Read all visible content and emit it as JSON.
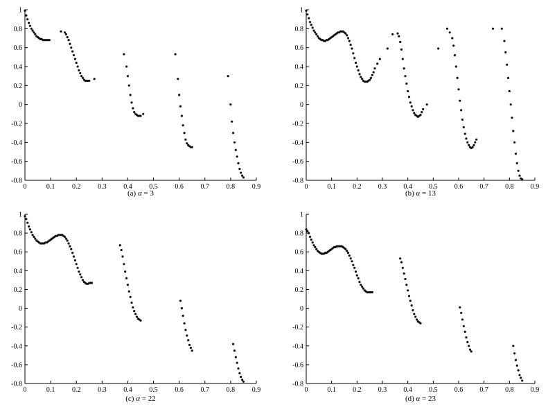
{
  "chart_data": [
    {
      "type": "scatter",
      "caption_prefix": "(a) ",
      "caption_var": "α",
      "caption_rest": " = 3",
      "xlim": [
        0,
        0.9
      ],
      "ylim": [
        -0.8,
        1
      ],
      "x_ticks": [
        "0",
        "0.1",
        "0.2",
        "0.3",
        "0.4",
        "0.5",
        "0.6",
        "0.7",
        "0.8",
        "0.9"
      ],
      "y_ticks": [
        "1",
        "0.8",
        "0.6",
        "0.4",
        "0.2",
        "0",
        "-0.2",
        "-0.4",
        "-0.6",
        "-0.8"
      ],
      "series": [
        {
          "x": [
            0,
            0.005,
            0.01,
            0.015,
            0.02,
            0.025,
            0.03,
            0.035,
            0.04,
            0.045,
            0.05,
            0.055,
            0.06,
            0.065,
            0.07,
            0.075,
            0.08,
            0.085,
            0.09,
            0.095,
            0.14,
            0.155,
            0.16,
            0.165,
            0.17,
            0.175,
            0.18,
            0.185,
            0.19,
            0.195,
            0.2,
            0.205,
            0.21,
            0.215,
            0.22,
            0.225,
            0.23,
            0.235,
            0.24,
            0.245,
            0.25,
            0.27,
            0.385,
            0.395,
            0.4,
            0.405,
            0.41,
            0.415,
            0.42,
            0.425,
            0.43,
            0.435,
            0.44,
            0.445,
            0.45,
            0.46,
            0.585,
            0.595,
            0.6,
            0.605,
            0.61,
            0.615,
            0.62,
            0.625,
            0.63,
            0.635,
            0.64,
            0.645,
            0.65,
            0.79,
            0.8,
            0.805,
            0.81,
            0.815,
            0.82,
            0.825,
            0.83,
            0.835,
            0.84,
            0.845,
            0.85
          ],
          "y": [
            0.99,
            0.94,
            0.9,
            0.86,
            0.83,
            0.8,
            0.78,
            0.76,
            0.74,
            0.72,
            0.71,
            0.7,
            0.69,
            0.69,
            0.68,
            0.68,
            0.68,
            0.68,
            0.68,
            0.68,
            0.77,
            0.76,
            0.74,
            0.71,
            0.68,
            0.64,
            0.6,
            0.56,
            0.52,
            0.48,
            0.44,
            0.4,
            0.36,
            0.33,
            0.3,
            0.28,
            0.26,
            0.25,
            0.25,
            0.25,
            0.25,
            0.27,
            0.53,
            0.4,
            0.3,
            0.2,
            0.1,
            0.02,
            -0.04,
            -0.08,
            -0.1,
            -0.11,
            -0.12,
            -0.12,
            -0.12,
            -0.1,
            0.53,
            0.27,
            0.1,
            -0.02,
            -0.12,
            -0.22,
            -0.3,
            -0.37,
            -0.41,
            -0.43,
            -0.44,
            -0.45,
            -0.45,
            0.3,
            0.0,
            -0.18,
            -0.3,
            -0.4,
            -0.48,
            -0.55,
            -0.62,
            -0.68,
            -0.72,
            -0.75,
            -0.77
          ]
        }
      ]
    },
    {
      "type": "scatter",
      "caption_prefix": "(b) ",
      "caption_var": "α",
      "caption_rest": " = 13",
      "xlim": [
        0,
        0.9
      ],
      "ylim": [
        -0.8,
        1
      ],
      "x_ticks": [
        "0",
        "0.1",
        "0.2",
        "0.3",
        "0.4",
        "0.5",
        "0.6",
        "0.7",
        "0.8",
        "0.9"
      ],
      "y_ticks": [
        "1",
        "0.8",
        "0.6",
        "0.4",
        "0.2",
        "0",
        "-0.2",
        "-0.4",
        "-0.6",
        "-0.8"
      ],
      "series": [
        {
          "x": [
            0,
            0.005,
            0.01,
            0.015,
            0.02,
            0.025,
            0.03,
            0.035,
            0.04,
            0.045,
            0.05,
            0.055,
            0.06,
            0.065,
            0.07,
            0.075,
            0.08,
            0.085,
            0.09,
            0.095,
            0.1,
            0.105,
            0.11,
            0.115,
            0.12,
            0.125,
            0.13,
            0.135,
            0.14,
            0.145,
            0.15,
            0.155,
            0.16,
            0.165,
            0.17,
            0.175,
            0.18,
            0.185,
            0.19,
            0.195,
            0.2,
            0.205,
            0.21,
            0.215,
            0.22,
            0.225,
            0.23,
            0.235,
            0.24,
            0.245,
            0.25,
            0.255,
            0.26,
            0.265,
            0.27,
            0.28,
            0.29,
            0.32,
            0.34,
            0.36,
            0.365,
            0.37,
            0.375,
            0.38,
            0.385,
            0.39,
            0.395,
            0.4,
            0.405,
            0.41,
            0.415,
            0.42,
            0.425,
            0.43,
            0.435,
            0.44,
            0.445,
            0.45,
            0.455,
            0.46,
            0.475,
            0.52,
            0.555,
            0.565,
            0.575,
            0.58,
            0.585,
            0.59,
            0.595,
            0.6,
            0.605,
            0.61,
            0.615,
            0.62,
            0.625,
            0.63,
            0.635,
            0.64,
            0.645,
            0.65,
            0.655,
            0.66,
            0.665,
            0.67,
            0.735,
            0.77,
            0.78,
            0.785,
            0.79,
            0.795,
            0.8,
            0.805,
            0.81,
            0.815,
            0.82,
            0.825,
            0.83,
            0.835,
            0.84,
            0.845,
            0.85
          ],
          "y": [
            0.99,
            0.95,
            0.91,
            0.87,
            0.84,
            0.81,
            0.78,
            0.76,
            0.74,
            0.72,
            0.7,
            0.69,
            0.68,
            0.68,
            0.67,
            0.67,
            0.68,
            0.68,
            0.69,
            0.7,
            0.71,
            0.72,
            0.73,
            0.74,
            0.75,
            0.76,
            0.76,
            0.77,
            0.77,
            0.77,
            0.76,
            0.75,
            0.73,
            0.7,
            0.67,
            0.63,
            0.59,
            0.54,
            0.49,
            0.44,
            0.4,
            0.36,
            0.32,
            0.29,
            0.27,
            0.25,
            0.24,
            0.24,
            0.24,
            0.25,
            0.26,
            0.28,
            0.31,
            0.34,
            0.38,
            0.43,
            0.48,
            0.59,
            0.74,
            0.75,
            0.72,
            0.66,
            0.58,
            0.48,
            0.38,
            0.3,
            0.22,
            0.14,
            0.08,
            0.02,
            -0.02,
            -0.06,
            -0.09,
            -0.11,
            -0.12,
            -0.13,
            -0.12,
            -0.11,
            -0.08,
            -0.05,
            0.0,
            0.59,
            0.8,
            0.76,
            0.7,
            0.62,
            0.52,
            0.4,
            0.28,
            0.16,
            0.04,
            -0.06,
            -0.16,
            -0.24,
            -0.31,
            -0.36,
            -0.4,
            -0.43,
            -0.45,
            -0.46,
            -0.45,
            -0.43,
            -0.4,
            -0.37,
            0.8,
            0.8,
            0.67,
            0.55,
            0.42,
            0.28,
            0.14,
            0.0,
            -0.14,
            -0.28,
            -0.4,
            -0.52,
            -0.62,
            -0.7,
            -0.75,
            -0.78,
            -0.79
          ]
        }
      ]
    },
    {
      "type": "scatter",
      "caption_prefix": "(c) ",
      "caption_var": "α",
      "caption_rest": " = 22",
      "xlim": [
        0,
        0.9
      ],
      "ylim": [
        -0.8,
        1
      ],
      "x_ticks": [
        "0",
        "0.1",
        "0.2",
        "0.3",
        "0.4",
        "0.5",
        "0.6",
        "0.7",
        "0.8",
        "0.9"
      ],
      "y_ticks": [
        "1",
        "0.8",
        "0.6",
        "0.4",
        "0.2",
        "0",
        "-0.2",
        "-0.4",
        "-0.6",
        "-0.8"
      ],
      "series": [
        {
          "x": [
            0,
            0.005,
            0.01,
            0.015,
            0.02,
            0.025,
            0.03,
            0.035,
            0.04,
            0.045,
            0.05,
            0.055,
            0.06,
            0.065,
            0.07,
            0.075,
            0.08,
            0.085,
            0.09,
            0.095,
            0.1,
            0.105,
            0.11,
            0.115,
            0.12,
            0.125,
            0.13,
            0.135,
            0.14,
            0.145,
            0.15,
            0.155,
            0.16,
            0.165,
            0.17,
            0.175,
            0.18,
            0.185,
            0.19,
            0.195,
            0.2,
            0.205,
            0.21,
            0.215,
            0.22,
            0.225,
            0.23,
            0.235,
            0.24,
            0.245,
            0.25,
            0.255,
            0.26,
            0.37,
            0.375,
            0.38,
            0.385,
            0.39,
            0.395,
            0.4,
            0.405,
            0.41,
            0.415,
            0.42,
            0.425,
            0.43,
            0.435,
            0.44,
            0.445,
            0.45,
            0.605,
            0.61,
            0.615,
            0.62,
            0.625,
            0.63,
            0.635,
            0.64,
            0.645,
            0.65,
            0.81,
            0.815,
            0.82,
            0.825,
            0.83,
            0.835,
            0.84,
            0.845,
            0.85
          ],
          "y": [
            0.98,
            0.95,
            0.91,
            0.87,
            0.84,
            0.81,
            0.78,
            0.76,
            0.74,
            0.72,
            0.71,
            0.7,
            0.69,
            0.69,
            0.69,
            0.69,
            0.7,
            0.7,
            0.71,
            0.72,
            0.73,
            0.74,
            0.75,
            0.76,
            0.77,
            0.77,
            0.78,
            0.78,
            0.78,
            0.78,
            0.77,
            0.76,
            0.74,
            0.72,
            0.69,
            0.66,
            0.63,
            0.59,
            0.55,
            0.51,
            0.47,
            0.43,
            0.39,
            0.36,
            0.33,
            0.3,
            0.28,
            0.27,
            0.26,
            0.26,
            0.27,
            0.27,
            0.27,
            0.67,
            0.62,
            0.55,
            0.47,
            0.39,
            0.32,
            0.25,
            0.18,
            0.12,
            0.06,
            0.01,
            -0.03,
            -0.06,
            -0.09,
            -0.11,
            -0.12,
            -0.13,
            0.08,
            0.0,
            -0.08,
            -0.16,
            -0.23,
            -0.29,
            -0.34,
            -0.39,
            -0.42,
            -0.45,
            -0.38,
            -0.45,
            -0.52,
            -0.58,
            -0.64,
            -0.69,
            -0.73,
            -0.76,
            -0.78
          ]
        }
      ]
    },
    {
      "type": "scatter",
      "caption_prefix": "(d) ",
      "caption_var": "α",
      "caption_rest": " = 23",
      "xlim": [
        0,
        0.9
      ],
      "ylim": [
        -0.8,
        1
      ],
      "x_ticks": [
        "0",
        "0.1",
        "0.2",
        "0.3",
        "0.4",
        "0.5",
        "0.6",
        "0.7",
        "0.8",
        "0.9"
      ],
      "y_ticks": [
        "1",
        "0.8",
        "0.6",
        "0.4",
        "0.2",
        "0",
        "-0.2",
        "-0.4",
        "-0.6",
        "-0.8"
      ],
      "series": [
        {
          "x": [
            0,
            0.005,
            0.01,
            0.015,
            0.02,
            0.025,
            0.03,
            0.035,
            0.04,
            0.045,
            0.05,
            0.055,
            0.06,
            0.065,
            0.07,
            0.075,
            0.08,
            0.085,
            0.09,
            0.095,
            0.1,
            0.105,
            0.11,
            0.115,
            0.12,
            0.125,
            0.13,
            0.135,
            0.14,
            0.145,
            0.15,
            0.155,
            0.16,
            0.165,
            0.17,
            0.175,
            0.18,
            0.185,
            0.19,
            0.195,
            0.2,
            0.205,
            0.21,
            0.215,
            0.22,
            0.225,
            0.23,
            0.235,
            0.24,
            0.245,
            0.25,
            0.255,
            0.26,
            0.37,
            0.375,
            0.38,
            0.385,
            0.39,
            0.395,
            0.4,
            0.405,
            0.41,
            0.415,
            0.42,
            0.425,
            0.43,
            0.435,
            0.44,
            0.445,
            0.45,
            0.605,
            0.61,
            0.615,
            0.62,
            0.625,
            0.63,
            0.635,
            0.64,
            0.645,
            0.65,
            0.815,
            0.82,
            0.825,
            0.83,
            0.835,
            0.84,
            0.845,
            0.85
          ],
          "y": [
            0.84,
            0.82,
            0.8,
            0.76,
            0.73,
            0.7,
            0.67,
            0.65,
            0.63,
            0.61,
            0.6,
            0.59,
            0.58,
            0.58,
            0.58,
            0.59,
            0.59,
            0.6,
            0.61,
            0.62,
            0.63,
            0.64,
            0.65,
            0.65,
            0.66,
            0.66,
            0.66,
            0.66,
            0.66,
            0.65,
            0.64,
            0.63,
            0.61,
            0.59,
            0.56,
            0.53,
            0.5,
            0.46,
            0.43,
            0.39,
            0.35,
            0.32,
            0.28,
            0.25,
            0.23,
            0.21,
            0.19,
            0.18,
            0.17,
            0.17,
            0.17,
            0.17,
            0.17,
            0.53,
            0.49,
            0.43,
            0.37,
            0.31,
            0.25,
            0.19,
            0.13,
            0.08,
            0.03,
            -0.02,
            -0.06,
            -0.09,
            -0.12,
            -0.14,
            -0.15,
            -0.16,
            0.01,
            -0.05,
            -0.12,
            -0.19,
            -0.25,
            -0.31,
            -0.36,
            -0.4,
            -0.44,
            -0.46,
            -0.4,
            -0.48,
            -0.55,
            -0.61,
            -0.66,
            -0.71,
            -0.74,
            -0.77
          ]
        }
      ]
    }
  ]
}
